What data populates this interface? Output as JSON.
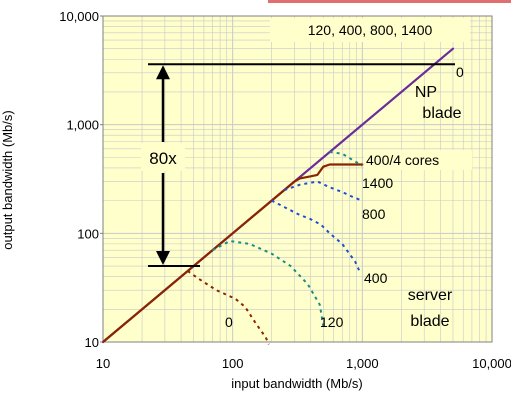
{
  "chart_data": {
    "type": "line",
    "x_scale": "log",
    "y_scale": "log",
    "xlim": [
      10,
      10000
    ],
    "ylim": [
      10,
      10000
    ],
    "xlabel": "input bandwidth (Mb/s)",
    "ylabel": "output bandwidth (Mb/s)",
    "x_tick_labels": [
      "10",
      "100",
      "1,000",
      "10,000"
    ],
    "y_tick_labels": [
      "10",
      "100",
      "1,000",
      "10,000"
    ],
    "grid": true,
    "colors": {
      "plot_background": "#FFFFCC",
      "grid": "#C8C8C8",
      "np_blade_series": "#6A2C9A",
      "server_blade_series": "#8B2500",
      "dotted_series_blue": "#1F4FD0",
      "dotted_series_teal": "#1B8A8A",
      "accent_bar": "#E07070"
    },
    "series": [
      {
        "group": "np_blade",
        "style": "solid",
        "color": "#6A2C9A",
        "x": [
          10,
          100,
          1000,
          5000
        ],
        "y": [
          10,
          100,
          1000,
          5000
        ]
      },
      {
        "group": "server_blade",
        "style": "solid",
        "color": "#8B2500",
        "x": [
          10,
          100,
          300,
          330,
          400,
          450,
          500,
          560,
          700,
          1000
        ],
        "y": [
          10,
          100,
          300,
          320,
          335,
          345,
          410,
          430,
          430,
          430
        ]
      },
      {
        "group": "server_blade",
        "style": "dotted",
        "color": "#1F4FD0",
        "x": [
          250,
          330,
          450,
          560,
          700,
          850,
          1000
        ],
        "y": [
          250,
          280,
          300,
          265,
          240,
          215,
          200
        ]
      },
      {
        "group": "server_blade",
        "style": "dotted",
        "color": "#1F4FD0",
        "x": [
          200,
          320,
          400,
          480,
          560,
          700,
          880,
          950
        ],
        "y": [
          200,
          150,
          135,
          120,
          100,
          80,
          55,
          45
        ]
      },
      {
        "group": "server_blade",
        "style": "dotted",
        "color": "#1B8A8A",
        "x": [
          70,
          95,
          135,
          200,
          280,
          380,
          470,
          500
        ],
        "y": [
          70,
          85,
          80,
          65,
          50,
          34,
          22,
          14
        ]
      },
      {
        "group": "server_blade",
        "style": "dotted",
        "color": "#8B2500",
        "x": [
          45,
          55,
          75,
          105,
          125,
          150,
          180,
          190
        ],
        "y": [
          45,
          38,
          30,
          25,
          21,
          15,
          11,
          9.5
        ]
      },
      {
        "group": "server_blade",
        "style": "dotted",
        "color": "#1B8A8A",
        "x": [
          560,
          700,
          850,
          1000
        ],
        "y": [
          560,
          540,
          470,
          420
        ]
      }
    ],
    "annotations": {
      "np_loads": "120, 400, 800, 1400",
      "np_zero": "0",
      "np_blade_line1": "NP",
      "np_blade_line2": "blade",
      "ratio": "80x",
      "cores": "400/4 cores",
      "load_1400": "1400",
      "load_800": "800",
      "load_400": "400",
      "server_blade_line1": "server",
      "server_blade_line2": "blade",
      "load_0": "0",
      "load_120": "120"
    },
    "ratio_arrow": {
      "top_value": 3600,
      "bottom_value": 50
    }
  }
}
